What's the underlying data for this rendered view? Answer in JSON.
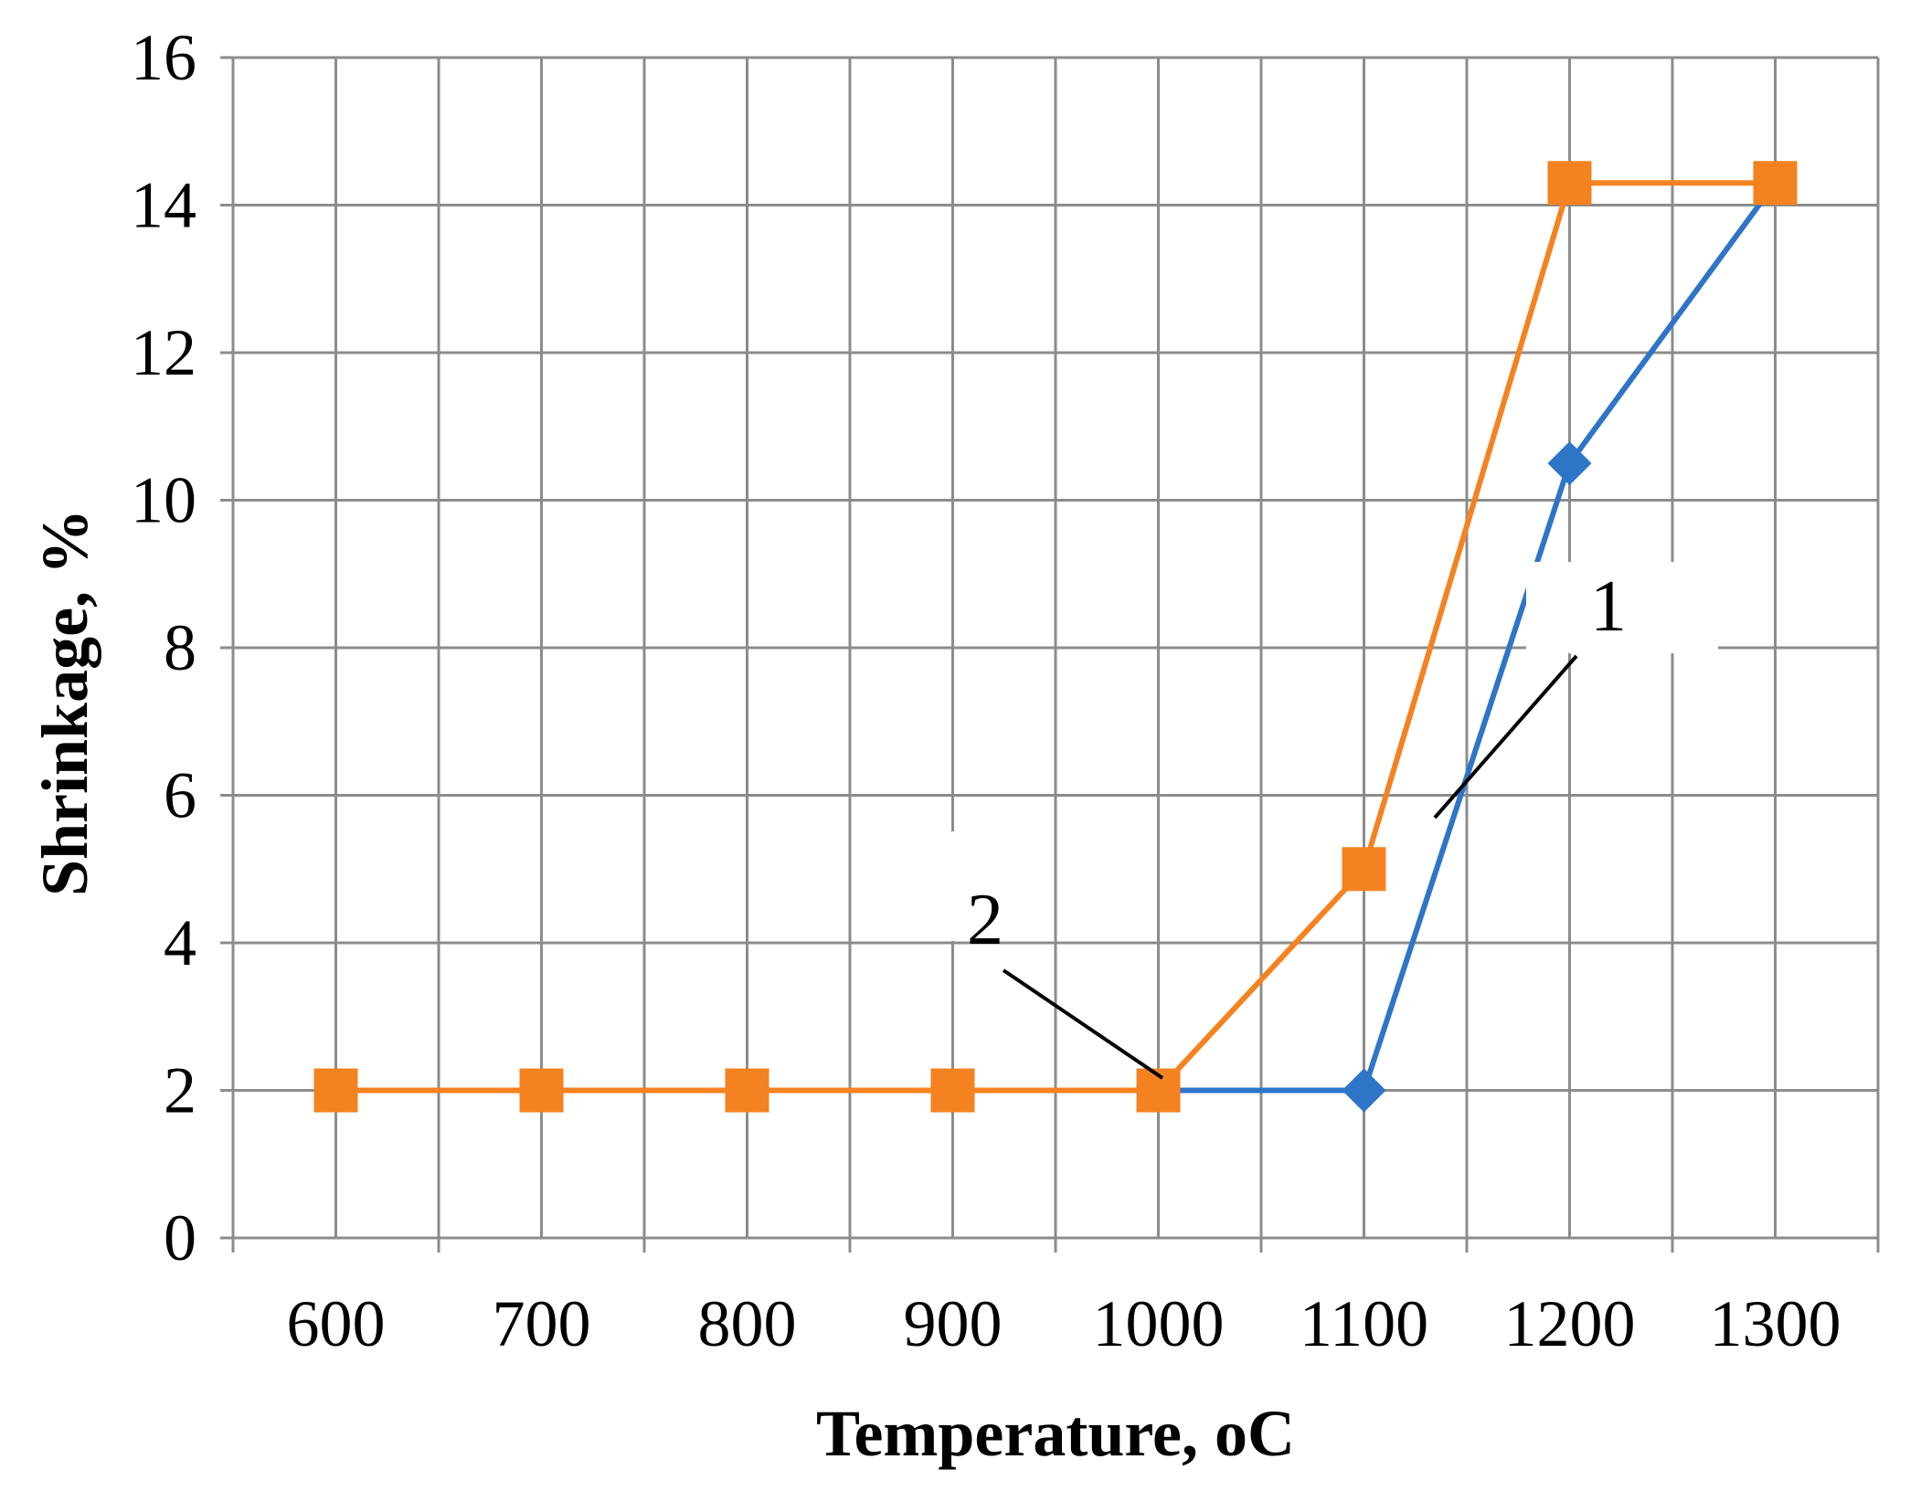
{
  "chart_data": {
    "type": "line",
    "xlabel": "Temperature, oC",
    "ylabel": "Shrinkage, %",
    "categories": [
      "600",
      "700",
      "800",
      "900",
      "1000",
      "1100",
      "1200",
      "1300"
    ],
    "ylim": [
      0,
      16
    ],
    "yticks": [
      0,
      2,
      4,
      6,
      8,
      10,
      12,
      14,
      16
    ],
    "grid": true,
    "series": [
      {
        "name": "1",
        "color": "#2E75C8",
        "marker": "diamond",
        "values": [
          2,
          2,
          2,
          2,
          2,
          2,
          10.5,
          14.3
        ]
      },
      {
        "name": "2",
        "color": "#F58220",
        "marker": "square",
        "values": [
          2,
          2,
          2,
          2,
          2,
          5,
          14.3,
          14.3
        ]
      }
    ],
    "annotations": [
      {
        "text": "1",
        "target_series": "1",
        "target_x": "1100-1200",
        "target_y": 6
      },
      {
        "text": "2",
        "target_series": "2",
        "target_x": "1000",
        "target_y": 2
      }
    ]
  }
}
